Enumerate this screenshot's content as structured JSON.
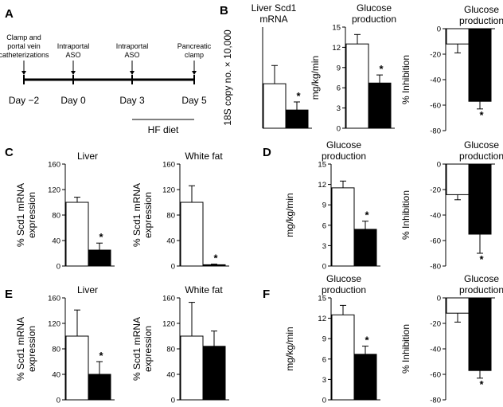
{
  "panels": {
    "A": "A",
    "B": "B",
    "C": "C",
    "D": "D",
    "E": "E",
    "F": "F"
  },
  "timeline": {
    "days": [
      "Day −2",
      "Day 0",
      "Day 3",
      "Day 5"
    ],
    "events": [
      {
        "lines": [
          "Clamp and",
          "portal vein",
          "catheterizations"
        ]
      },
      {
        "lines": [
          "Intraportal",
          "ASO"
        ]
      },
      {
        "lines": [
          "Intraportal",
          "ASO"
        ]
      },
      {
        "lines": [
          "Pancreatic",
          "clamp"
        ]
      }
    ],
    "diet_label": "HF diet"
  },
  "significance_marker": "*",
  "colors": {
    "control": "#ffffff",
    "treated": "#000000",
    "stroke": "#000000"
  },
  "chart_data": [
    {
      "id": "B1",
      "type": "bar",
      "title": [
        "Liver Scd1",
        "mRNA"
      ],
      "ylabel": "18S copy no. × 10,000",
      "ylim": [
        0,
        10
      ],
      "yticks": [],
      "values": [
        4.4,
        1.8
      ],
      "errors": [
        1.8,
        0.8
      ],
      "significant": [
        false,
        true
      ]
    },
    {
      "id": "B2",
      "type": "bar",
      "title": [
        "Glucose",
        "production"
      ],
      "ylabel": "mg/kg/min",
      "ylim": [
        0,
        15
      ],
      "yticks": [
        0,
        3,
        6,
        9,
        12,
        15
      ],
      "values": [
        12.5,
        6.7
      ],
      "errors": [
        1.4,
        1.2
      ],
      "significant": [
        false,
        true
      ]
    },
    {
      "id": "B3",
      "type": "bar",
      "title": [
        "Glucose",
        "production"
      ],
      "ylabel": "% Inhibition",
      "ylim": [
        -80,
        0
      ],
      "yticks": [
        0,
        -20,
        -40,
        -60,
        -80
      ],
      "values": [
        -12,
        -57
      ],
      "errors": [
        7,
        6
      ],
      "significant": [
        false,
        true
      ]
    },
    {
      "id": "C1",
      "type": "bar",
      "title": [
        "Liver"
      ],
      "ylabel": [
        "% Scd1 mRNA",
        "expression"
      ],
      "ylim": [
        0,
        160
      ],
      "yticks": [
        0,
        40,
        80,
        120,
        160
      ],
      "values": [
        100,
        25
      ],
      "errors": [
        8,
        11
      ],
      "significant": [
        false,
        true
      ]
    },
    {
      "id": "C2",
      "type": "bar",
      "title": [
        "White fat"
      ],
      "ylabel": [
        "% Scd1 mRNA",
        "expression"
      ],
      "ylim": [
        0,
        160
      ],
      "yticks": [
        0,
        40,
        80,
        120,
        160
      ],
      "values": [
        100,
        2
      ],
      "errors": [
        26,
        1
      ],
      "significant": [
        false,
        true
      ]
    },
    {
      "id": "D1",
      "type": "bar",
      "title": [
        "Glucose",
        "production"
      ],
      "ylabel": "mg/kg/min",
      "ylim": [
        0,
        15
      ],
      "yticks": [
        0,
        3,
        6,
        9,
        12,
        15
      ],
      "values": [
        11.5,
        5.4
      ],
      "errors": [
        1.0,
        1.2
      ],
      "significant": [
        false,
        true
      ]
    },
    {
      "id": "D2",
      "type": "bar",
      "title": [
        "Glucose",
        "production"
      ],
      "ylabel": "% Inhibition",
      "ylim": [
        -80,
        0
      ],
      "yticks": [
        0,
        -20,
        -40,
        -60,
        -80
      ],
      "values": [
        -24,
        -55
      ],
      "errors": [
        4,
        15
      ],
      "significant": [
        false,
        true
      ]
    },
    {
      "id": "E1",
      "type": "bar",
      "title": [
        "Liver"
      ],
      "ylabel": [
        "% Scd1 mRNA",
        "expression"
      ],
      "ylim": [
        0,
        160
      ],
      "yticks": [
        0,
        40,
        80,
        120,
        160
      ],
      "values": [
        100,
        40
      ],
      "errors": [
        41,
        20
      ],
      "significant": [
        false,
        true
      ]
    },
    {
      "id": "E2",
      "type": "bar",
      "title": [
        "White fat"
      ],
      "ylabel": [
        "% Scd1 mRNA",
        "expression"
      ],
      "ylim": [
        0,
        160
      ],
      "yticks": [
        0,
        40,
        80,
        120,
        160
      ],
      "values": [
        100,
        84
      ],
      "errors": [
        53,
        24
      ],
      "significant": [
        false,
        false
      ]
    },
    {
      "id": "F1",
      "type": "bar",
      "title": [
        "Glucose",
        "production"
      ],
      "ylabel": "mg/kg/min",
      "ylim": [
        0,
        15
      ],
      "yticks": [
        0,
        3,
        6,
        9,
        12,
        15
      ],
      "values": [
        12.5,
        6.7
      ],
      "errors": [
        1.4,
        1.2
      ],
      "significant": [
        false,
        true
      ]
    },
    {
      "id": "F2",
      "type": "bar",
      "title": [
        "Glucose",
        "production"
      ],
      "ylabel": "% Inhibition",
      "ylim": [
        -80,
        0
      ],
      "yticks": [
        0,
        -20,
        -40,
        -60,
        -80
      ],
      "values": [
        -12,
        -57
      ],
      "errors": [
        7,
        6
      ],
      "significant": [
        false,
        true
      ]
    }
  ]
}
